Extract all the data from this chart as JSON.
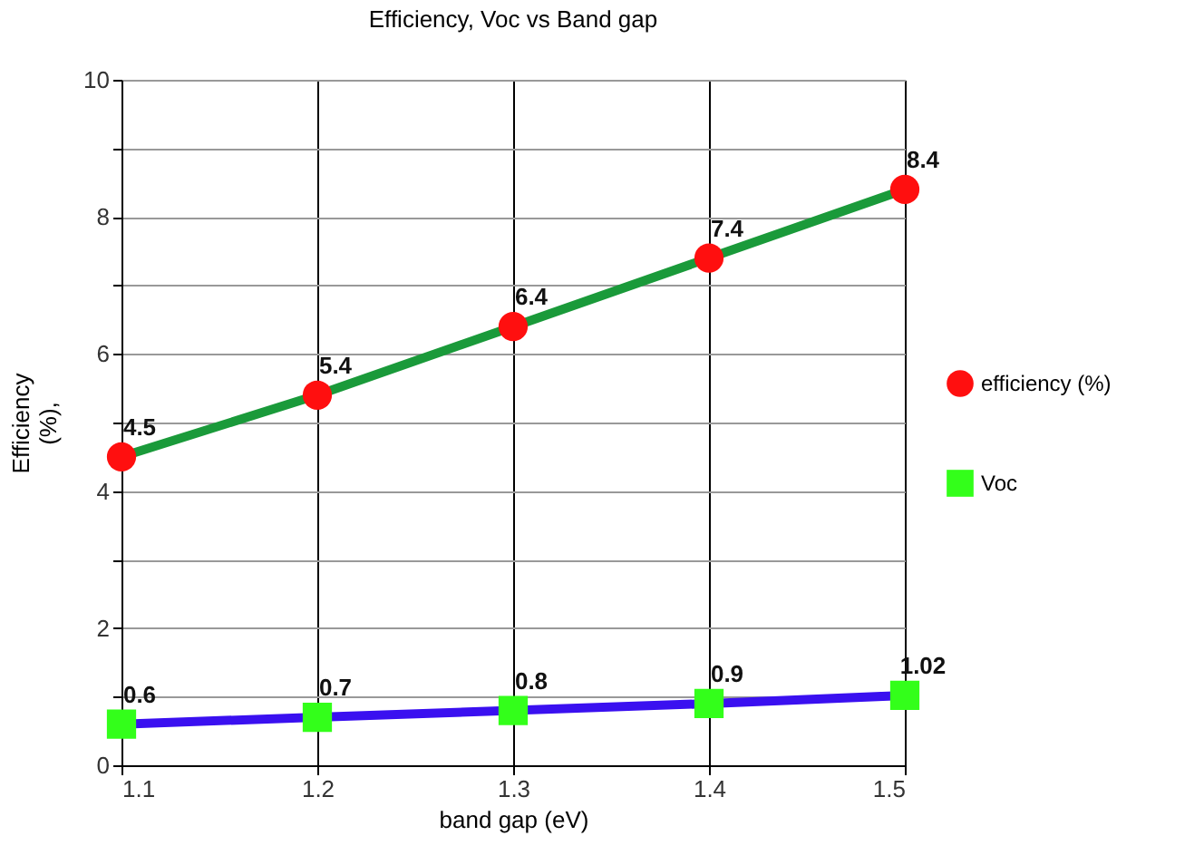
{
  "chart_data": {
    "type": "line",
    "title": "Efficiency, Voc  vs  Band gap",
    "xlabel": "band gap (eV)",
    "ylabel": "Efficiency (%),",
    "x": [
      1.1,
      1.2,
      1.3,
      1.4,
      1.5
    ],
    "series": [
      {
        "name": "efficiency  (%)",
        "color": "#1a9a3a",
        "colors": [
          "#ff0f0f",
          "#ff0f0f",
          "#ff0f0f",
          "#ff0f0f",
          "#ff0f0f"
        ],
        "marker": "circle",
        "values": [
          4.5,
          5.4,
          6.4,
          7.4,
          8.4
        ]
      },
      {
        "name": "Voc",
        "color": "#3a10f0",
        "colors": [
          "#33ff1a",
          "#33ff1a",
          "#33ff1a",
          "#33ff1a",
          "#33ff1a"
        ],
        "marker": "square",
        "values": [
          0.6,
          0.7,
          0.8,
          0.9,
          1.02
        ]
      }
    ],
    "xlim": [
      1.1,
      1.5
    ],
    "xticks": [
      1.1,
      1.2,
      1.3,
      1.4,
      1.5
    ],
    "ylim": [
      0,
      10
    ],
    "yticks": [
      0,
      {
        "value": 1,
        "label": null
      },
      2,
      {
        "value": 3,
        "label": null
      },
      4,
      {
        "value": 5,
        "label": null
      },
      6,
      {
        "value": 7,
        "label": null
      },
      8,
      {
        "value": 9,
        "label": null
      },
      10
    ],
    "grid": true,
    "legend": "right",
    "data_labels": true,
    "line_style": "solid"
  }
}
